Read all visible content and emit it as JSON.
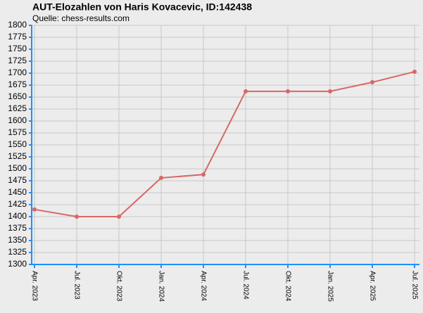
{
  "chart_data": {
    "type": "line",
    "title": "AUT-Elozahlen von Haris Kovacevic, ID:142438",
    "subtitle": "Quelle: chess-results.com",
    "categories": [
      "Apr. 2023",
      "Jul. 2023",
      "Okt. 2023",
      "Jan. 2024",
      "Apr. 2024",
      "Jul. 2024",
      "Okt. 2024",
      "Jan. 2025",
      "Apr. 2025",
      "Jul. 2025"
    ],
    "values": [
      1415,
      1400,
      1400,
      1481,
      1488,
      1662,
      1662,
      1662,
      1681,
      1703
    ],
    "color": "#d96666",
    "ylim": [
      1300,
      1800
    ],
    "yticks": [
      1300,
      1325,
      1350,
      1375,
      1400,
      1425,
      1450,
      1475,
      1500,
      1525,
      1550,
      1575,
      1600,
      1625,
      1650,
      1675,
      1700,
      1725,
      1750,
      1775,
      1800
    ],
    "grid": true
  }
}
